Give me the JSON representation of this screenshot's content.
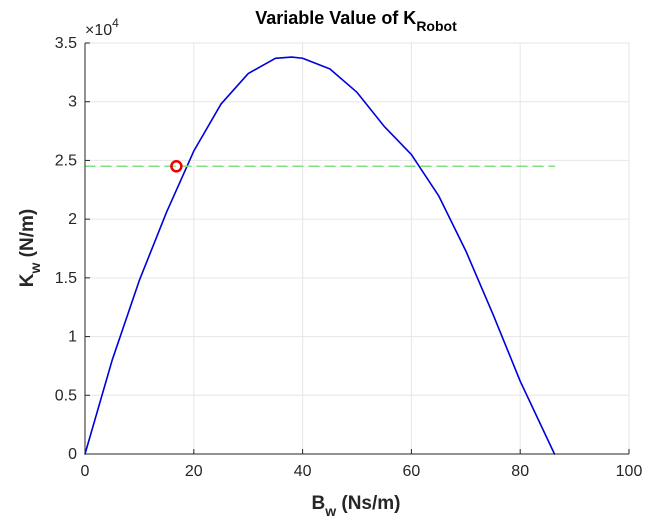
{
  "chart_data": {
    "type": "line",
    "title": {
      "main": "Variable Value of K",
      "subscript": "Robot"
    },
    "xlabel": {
      "main": "B",
      "subscript": "w",
      "unit": " (Ns/m)"
    },
    "ylabel": {
      "main": "K",
      "subscript": "w",
      "unit": " (N/m)"
    },
    "xlim": [
      0,
      100
    ],
    "ylim": [
      0,
      35000
    ],
    "x_ticks": [
      0,
      20,
      40,
      60,
      80,
      100
    ],
    "x_tick_labels": [
      "0",
      "20",
      "40",
      "60",
      "80",
      "100"
    ],
    "y_ticks": [
      0,
      5000,
      10000,
      15000,
      20000,
      25000,
      30000,
      35000
    ],
    "y_tick_labels": [
      "0",
      "0.5",
      "1",
      "1.5",
      "2",
      "2.5",
      "3",
      "3.5"
    ],
    "y_exponent": {
      "prefix": "×10",
      "power": "4"
    },
    "grid": true,
    "series": [
      {
        "type": "line",
        "color": "#0000dd",
        "x": [
          0,
          5,
          10,
          15,
          20,
          25,
          30,
          35,
          38,
          40,
          45,
          50,
          55,
          60,
          65,
          70,
          75,
          80,
          86.3
        ],
        "y": [
          0,
          8000,
          14800,
          20600,
          25800,
          29800,
          32400,
          33700,
          33800,
          33700,
          32800,
          30800,
          27900,
          25500,
          22000,
          17300,
          11900,
          6200,
          0
        ]
      },
      {
        "type": "dashed",
        "color": "#7fe07f",
        "x": [
          0,
          86.3
        ],
        "y": [
          24500,
          24500
        ]
      }
    ],
    "marker": {
      "x": 16.8,
      "y": 24500,
      "edge_color": "#ee0000"
    }
  }
}
